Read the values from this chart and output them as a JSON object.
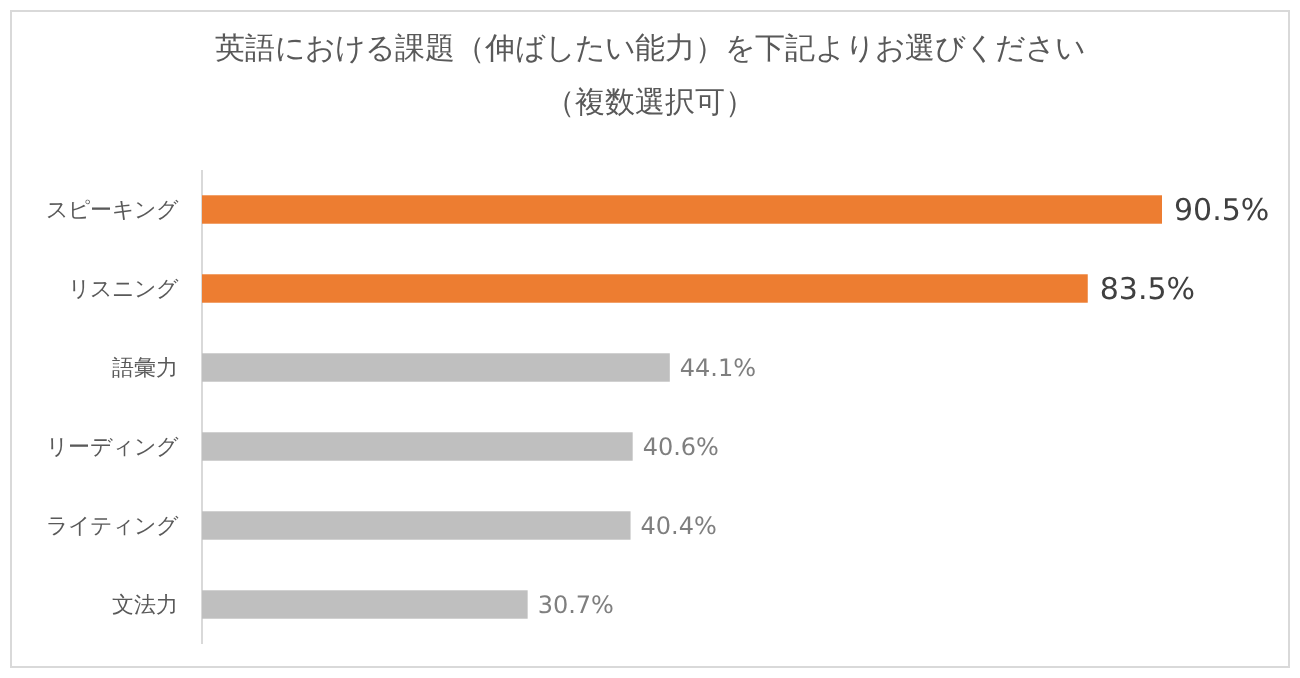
{
  "chart_data": {
    "type": "bar",
    "orientation": "horizontal",
    "title": "英語における課題（伸ばしたい能力）を下記よりお選びください",
    "subtitle": "（複数選択可）",
    "categories": [
      "スピーキング",
      "リスニング",
      "語彙力",
      "リーディング",
      "ライティング",
      "文法力"
    ],
    "values": [
      90.5,
      83.5,
      44.1,
      40.6,
      40.4,
      30.7
    ],
    "colors": [
      "#ed7d31",
      "#ed7d31",
      "#bfbfbf",
      "#bfbfbf",
      "#bfbfbf",
      "#bfbfbf"
    ],
    "value_labels": [
      "90.5%",
      "83.5%",
      "44.1%",
      "40.6%",
      "40.4%",
      "30.7%"
    ],
    "tick_labels": "y"
  }
}
